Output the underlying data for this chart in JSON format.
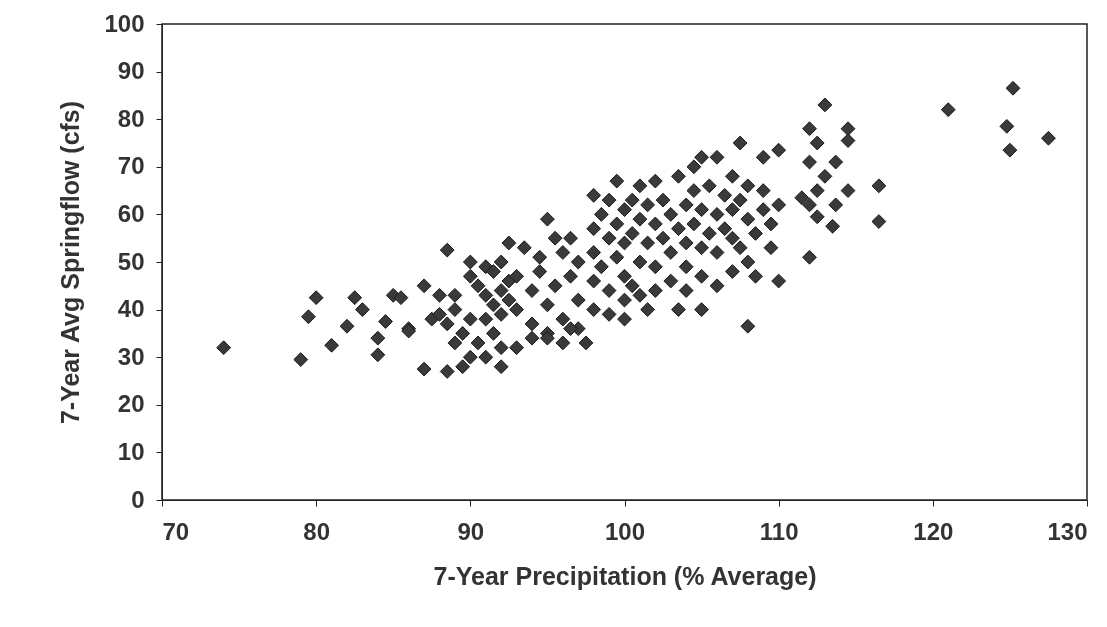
{
  "chart_data": {
    "type": "scatter",
    "xlabel": "7-Year Precipitation (% Average)",
    "ylabel": "7-Year Avg Springflow (cfs)",
    "xlim": [
      70,
      130
    ],
    "xticks": [
      70,
      80,
      90,
      100,
      110,
      120,
      130
    ],
    "ylim": [
      0,
      100
    ],
    "yticks": [
      0,
      10,
      20,
      30,
      40,
      50,
      60,
      70,
      80,
      90,
      100
    ],
    "grid": false,
    "marker": "diamond",
    "series": [
      {
        "color": "#3a3a3a",
        "x": [
          74,
          79,
          79.5,
          80,
          81,
          82,
          82.5,
          83,
          84,
          84,
          84.5,
          85,
          85.5,
          86,
          86,
          87,
          87,
          88.5,
          88.5,
          121,
          124.8,
          125,
          125.2,
          127.5,
          116.5,
          116.5,
          113,
          112,
          112.5,
          114.5,
          114.5,
          113.7,
          112,
          113,
          111.5,
          112,
          112.5,
          113.7,
          114.5,
          113.5,
          112.5,
          112,
          110,
          109,
          107.5,
          108,
          105,
          104.5,
          87.5,
          88,
          88,
          88.5,
          89,
          89,
          89.5,
          89.5,
          90,
          90,
          90,
          90,
          90.5,
          90.5,
          91,
          91,
          91,
          91,
          91.5,
          91.5,
          91.5,
          92,
          92,
          92,
          92,
          92.5,
          92.5,
          92.5,
          93,
          93,
          93,
          93.5,
          94,
          94,
          94,
          94.5,
          94.5,
          95,
          95,
          95,
          95.5,
          95.5,
          96,
          96,
          96,
          96.5,
          96.5,
          97,
          97,
          97,
          97.5,
          98,
          98,
          98,
          98,
          98,
          98.5,
          98.5,
          99,
          99,
          99,
          99,
          99.5,
          99.5,
          99.5,
          100,
          100,
          100,
          100,
          100,
          100.5,
          100.5,
          100.5,
          101,
          101,
          101,
          101,
          101.5,
          101.5,
          101.5,
          102,
          102,
          102,
          102,
          102.5,
          102.5,
          103,
          103,
          103,
          103.5,
          103.5,
          103.5,
          104,
          104,
          104,
          104,
          104.5,
          104.5,
          105,
          105,
          105,
          105,
          105.5,
          105.5,
          106,
          106,
          106,
          106,
          106.5,
          106.5,
          107,
          107,
          107,
          107,
          107.5,
          107.5,
          108,
          108,
          108,
          108.5,
          108.5,
          109,
          109,
          109.5,
          109.5,
          110,
          110,
          96.5,
          95,
          92,
          89
        ],
        "values": [
          32,
          29.5,
          38.5,
          42.5,
          32.5,
          36.5,
          42.5,
          40,
          34,
          30.5,
          37.5,
          43,
          42.5,
          36,
          35.5,
          27.5,
          45,
          27,
          52.5,
          82,
          78.5,
          73.5,
          86.5,
          76,
          66,
          58.5,
          83,
          78,
          75,
          78,
          75.5,
          71,
          71,
          68,
          63.5,
          62,
          65,
          62,
          65,
          57.5,
          59.5,
          51,
          73.5,
          72,
          75,
          36.5,
          72,
          70,
          38,
          43,
          39,
          37,
          43,
          40,
          35,
          28,
          47,
          50,
          30,
          38,
          33,
          45,
          49,
          43,
          38,
          30,
          48,
          41,
          35,
          50,
          44,
          39,
          28,
          46,
          42,
          54,
          47,
          32,
          40,
          53,
          44,
          37,
          34,
          51,
          48,
          59,
          41,
          35,
          55,
          45,
          52,
          38,
          33,
          55,
          47,
          50,
          42,
          36,
          33,
          64,
          57,
          52,
          46,
          40,
          60,
          49,
          63,
          55,
          44,
          39,
          67,
          58,
          51,
          61,
          54,
          47,
          42,
          38,
          63,
          56,
          45,
          66,
          59,
          50,
          43,
          62,
          54,
          40,
          67,
          58,
          49,
          44,
          63,
          55,
          60,
          52,
          46,
          68,
          57,
          40,
          62,
          54,
          49,
          44,
          65,
          58,
          61,
          53,
          47,
          40,
          66,
          56,
          72,
          60,
          52,
          45,
          64,
          57,
          68,
          61,
          55,
          48,
          63,
          53,
          66,
          59,
          50,
          56,
          47,
          65,
          61,
          58,
          53,
          62,
          46,
          36,
          34,
          32,
          33
        ]
      }
    ]
  }
}
